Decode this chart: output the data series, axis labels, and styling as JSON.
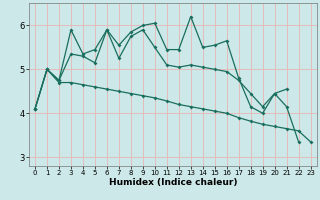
{
  "xlabel": "Humidex (Indice chaleur)",
  "bg_color": "#cce8e8",
  "grid_color": "#e8b4b4",
  "line_color": "#1a6e5e",
  "xlim": [
    -0.5,
    23.5
  ],
  "ylim": [
    2.8,
    6.5
  ],
  "yticks": [
    3,
    4,
    5,
    6
  ],
  "xticks": [
    0,
    1,
    2,
    3,
    4,
    5,
    6,
    7,
    8,
    9,
    10,
    11,
    12,
    13,
    14,
    15,
    16,
    17,
    18,
    19,
    20,
    21,
    22,
    23
  ],
  "line1_x": [
    0,
    1,
    2,
    3,
    4,
    5,
    6,
    7,
    8,
    9,
    10,
    11,
    12,
    13,
    14,
    15,
    16,
    17,
    18,
    19,
    20,
    21,
    22
  ],
  "line1_y": [
    4.1,
    5.0,
    4.75,
    5.9,
    5.35,
    5.45,
    5.9,
    5.55,
    5.85,
    6.0,
    6.05,
    5.45,
    5.45,
    6.2,
    5.5,
    5.55,
    5.65,
    4.8,
    4.15,
    4.0,
    4.45,
    4.15,
    3.35
  ],
  "line2_x": [
    0,
    1,
    2,
    3,
    4,
    5,
    6,
    7,
    8,
    9,
    10,
    11,
    12,
    13,
    14,
    15,
    16,
    17,
    18,
    19,
    20,
    21
  ],
  "line2_y": [
    4.1,
    5.0,
    4.75,
    5.35,
    5.3,
    5.15,
    5.9,
    5.25,
    5.75,
    5.9,
    5.5,
    5.1,
    5.05,
    5.1,
    5.05,
    5.0,
    4.95,
    4.75,
    4.45,
    4.15,
    4.45,
    4.55
  ],
  "line3_x": [
    0,
    1,
    2,
    3,
    4,
    5,
    6,
    7,
    8,
    9,
    10,
    11,
    12,
    13,
    14,
    15,
    16,
    17,
    18,
    19,
    20,
    21,
    22,
    23
  ],
  "line3_y": [
    4.1,
    5.0,
    4.7,
    4.7,
    4.65,
    4.6,
    4.55,
    4.5,
    4.45,
    4.4,
    4.35,
    4.28,
    4.2,
    4.15,
    4.1,
    4.05,
    4.0,
    3.9,
    3.82,
    3.75,
    3.7,
    3.65,
    3.6,
    3.35
  ]
}
